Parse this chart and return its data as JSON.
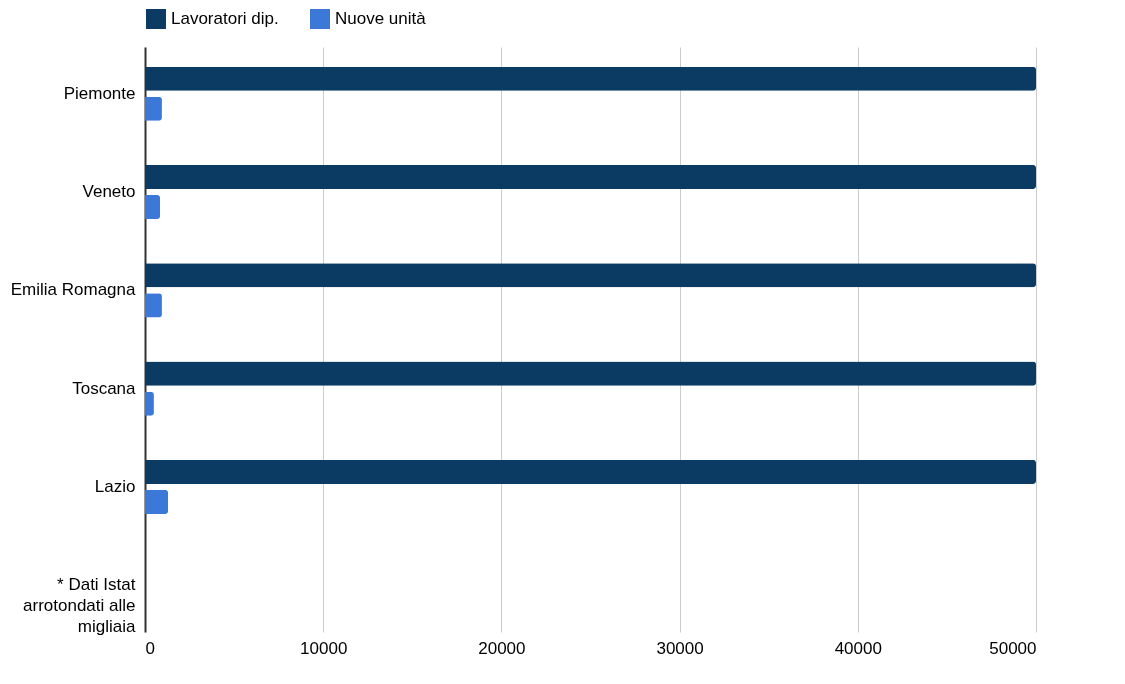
{
  "chart_data": {
    "type": "bar",
    "orientation": "horizontal",
    "categories": [
      "Piemonte",
      "Veneto",
      "Emilia Romagna",
      "Toscana",
      "Lazio",
      "* Dati Istat arrotondati alle migliaia"
    ],
    "series": [
      {
        "name": "Lavoratori dip.",
        "color": "#0b3a63",
        "values": [
          50000,
          50000,
          50000,
          50000,
          50000,
          null
        ]
      },
      {
        "name": "Nuove unità",
        "color": "#3c78d8",
        "values": [
          950,
          850,
          950,
          500,
          1300,
          null
        ]
      }
    ],
    "xlim": [
      0,
      50000
    ],
    "xticks": [
      0,
      10000,
      20000,
      30000,
      40000,
      50000
    ],
    "grid": "x",
    "legend": "top"
  }
}
